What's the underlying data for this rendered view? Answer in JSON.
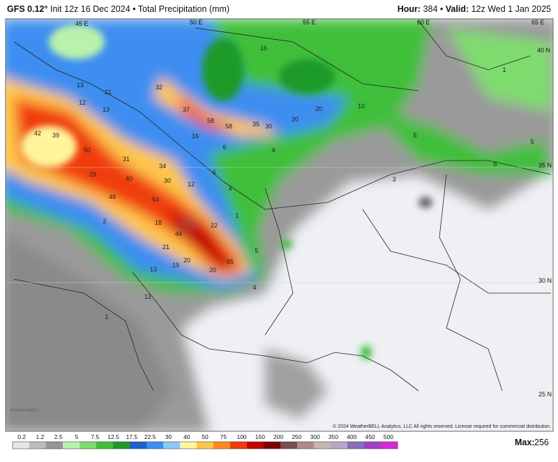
{
  "header": {
    "model": "GFS 0.12°",
    "info": "Init 12z 16 Dec 2024 • Total Precipitation (mm)",
    "hour_label": "Hour:",
    "hour": "384",
    "valid_label": "Valid:",
    "valid": "12z Wed 1 Jan 2025"
  },
  "grid_labels": [
    "45 E",
    "50 E",
    "55 E",
    "60 E",
    "65 E",
    "40 N",
    "35 N",
    "30 N",
    "25 N"
  ],
  "map_values": [
    21,
    13,
    12,
    13,
    32,
    16,
    37,
    58,
    58,
    35,
    30,
    20,
    20,
    10,
    5,
    5,
    5,
    1,
    3,
    4,
    6,
    16,
    42,
    39,
    50,
    31,
    34,
    40,
    30,
    12,
    6,
    4,
    48,
    54,
    18,
    22,
    44,
    1,
    5,
    65,
    21,
    20,
    19,
    13,
    20,
    4,
    12,
    1,
    2,
    29
  ],
  "copyright": "© 2024 WeatherBELL Analytics, LLC All rights reserved. License required for commercial distribution.",
  "logo": "WeatherBELL",
  "colorbar": {
    "labels": [
      0.2,
      1.2,
      2.5,
      5,
      7.5,
      12.5,
      17.5,
      22.5,
      30,
      40,
      50,
      75,
      100,
      150,
      200,
      250,
      300,
      350,
      400,
      450,
      500
    ],
    "colors": [
      "#e6e6e6",
      "#bdbdbd",
      "#969696",
      "#b9f2ac",
      "#7fdc6e",
      "#3fbf3a",
      "#1f9a2a",
      "#1f5fd0",
      "#3d8ef0",
      "#8cc8f5",
      "#fff59a",
      "#ffc64a",
      "#ff8a1e",
      "#f03c0c",
      "#c40000",
      "#7a0000",
      "#7a4f4f",
      "#b08a8a",
      "#c9b3b3",
      "#b3a8cc",
      "#8a6fb8",
      "#a23fc4",
      "#d82ad8"
    ]
  },
  "max_label": "Max:",
  "max": "256"
}
